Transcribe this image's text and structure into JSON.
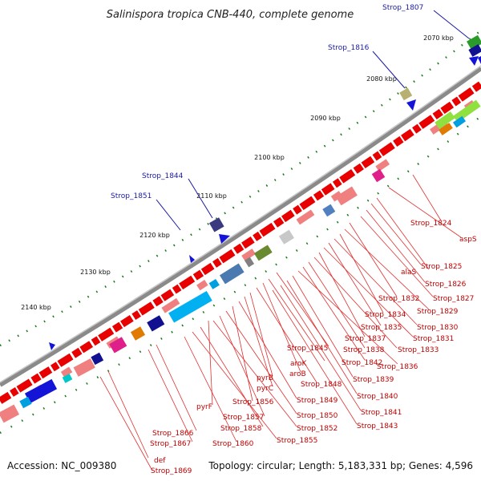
{
  "title": "Salinispora tropica CNB-440, complete genome",
  "footer": {
    "accession": "Accession: NC_009380",
    "summary": "Topology: circular; Length: 5,183,331 bp; Genes: 4,596"
  },
  "ticks": [
    "2070 kbp",
    "2080 kbp",
    "2090 kbp",
    "2100 kbp",
    "2110 kbp",
    "2120 kbp",
    "2130 kbp",
    "2140 kbp"
  ],
  "outer_labels": [
    "Strop_1807",
    "Strop_1816",
    "Strop_1844",
    "Strop_1851"
  ],
  "inner_labels": [
    "Strop_1824",
    "aspS",
    "alaS",
    "Strop_1825",
    "Strop_1826",
    "Strop_1827",
    "Strop_1832",
    "Strop_1829",
    "Strop_1834",
    "Strop_1830",
    "Strop_1835",
    "Strop_1831",
    "Strop_1837",
    "Strop_1833",
    "Strop_1838",
    "Strop_1845",
    "Strop_1842",
    "Strop_1836",
    "aroK",
    "Strop_1839",
    "aroB",
    "Strop_1848",
    "pyrB",
    "pyrC",
    "Strop_1840",
    "Strop_1849",
    "Strop_1856",
    "pyrF",
    "Strop_1841",
    "Strop_1850",
    "Strop_1857",
    "Strop_1843",
    "Strop_1852",
    "Strop_1858",
    "Strop_1866",
    "Strop_1855",
    "Strop_1860",
    "Strop_1867",
    "def",
    "Strop_1869"
  ],
  "colors": {
    "backbone": "#8a8a8a",
    "tick_green": "#1a7a1a",
    "gene_red": "#e80000",
    "gene_blue": "#1414d8",
    "label_blue": "#1a1aa6",
    "label_red": "#c00000"
  }
}
